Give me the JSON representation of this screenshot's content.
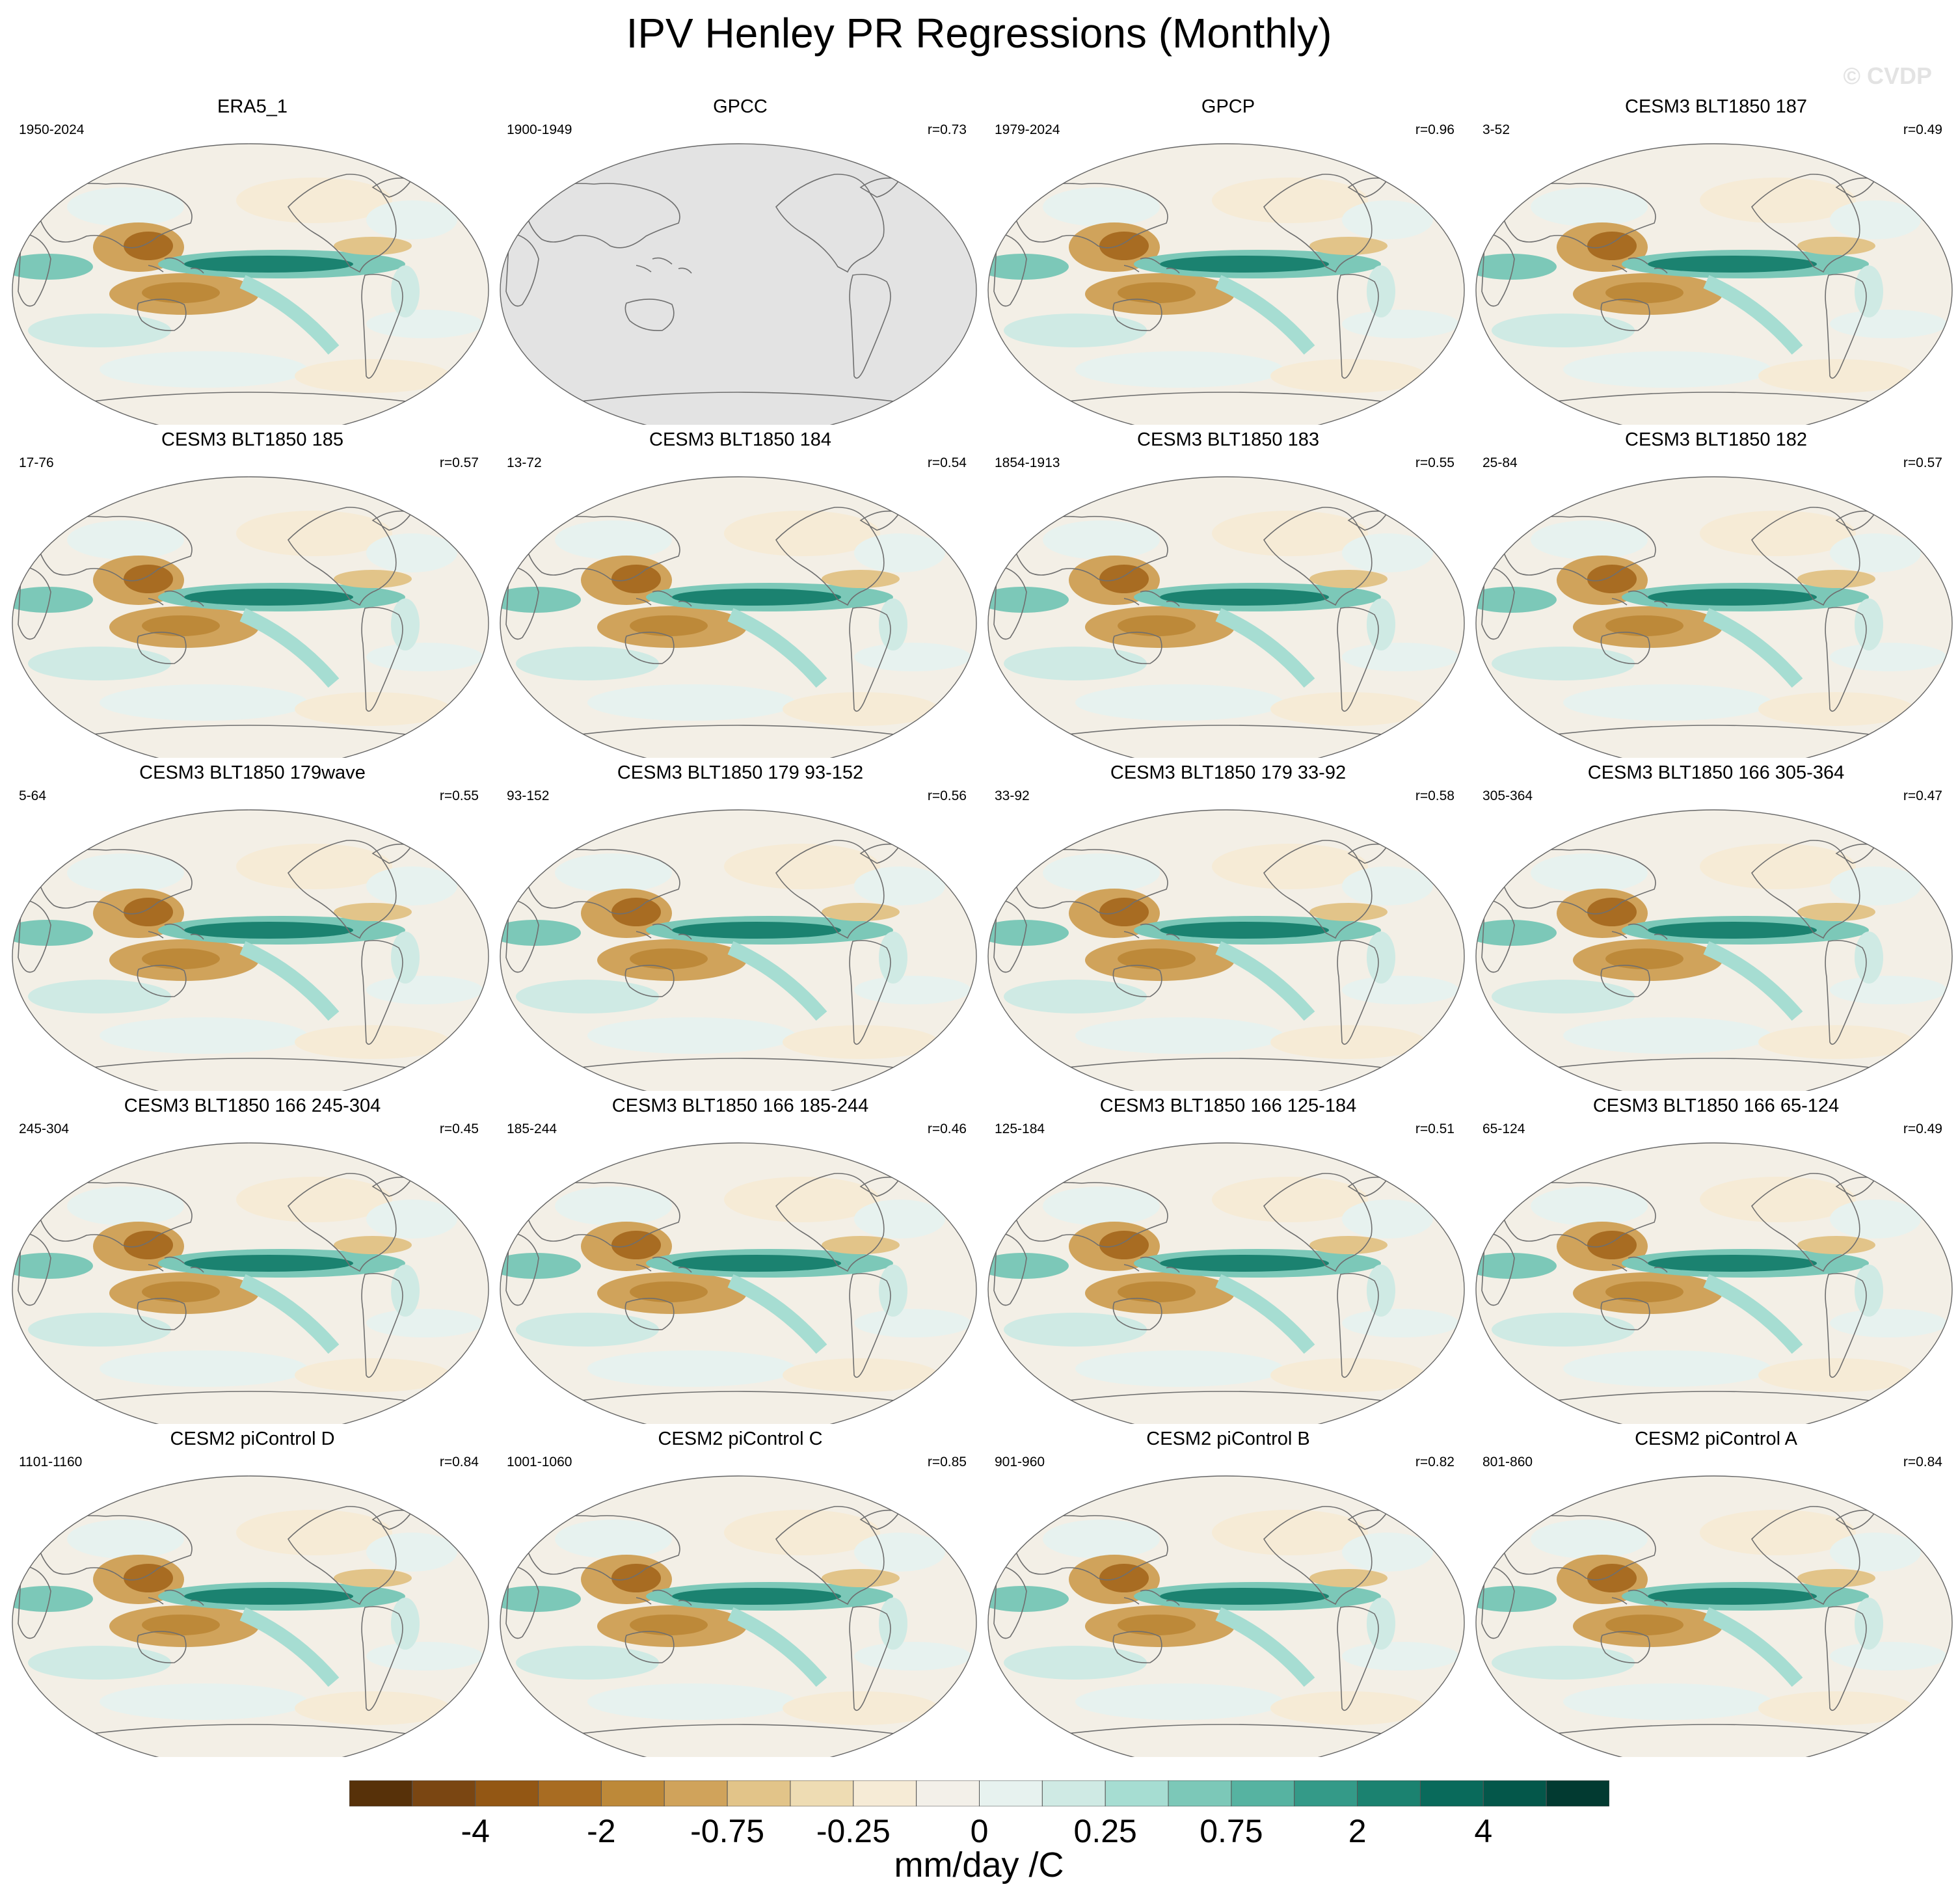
{
  "title": "IPV Henley PR Regressions (Monthly)",
  "watermark": "© CVDP",
  "colorbar": {
    "colors": [
      "#573109",
      "#7a4612",
      "#935714",
      "#a86c22",
      "#bd8939",
      "#d0a35b",
      "#e2c489",
      "#eedcb3",
      "#f6ebd6",
      "#f3f0e9",
      "#e7f2ef",
      "#cfeae4",
      "#a6ddd2",
      "#7cc8b8",
      "#56b3a1",
      "#349a88",
      "#1b8270",
      "#096a5b",
      "#04574a",
      "#023a31"
    ],
    "labels": [
      "-4",
      "-2",
      "-0.75",
      "-0.25",
      "0",
      "0.25",
      "0.75",
      "2",
      "4"
    ],
    "units": "mm/day /C"
  },
  "panels": [
    {
      "title": "ERA5_1",
      "years": "1950-2024",
      "r": "",
      "masked": false
    },
    {
      "title": "GPCC",
      "years": "1900-1949",
      "r": "r=0.73",
      "masked": true
    },
    {
      "title": "GPCP",
      "years": "1979-2024",
      "r": "r=0.96",
      "masked": false
    },
    {
      "title": "CESM3 BLT1850 187",
      "years": "3-52",
      "r": "r=0.49",
      "masked": false
    },
    {
      "title": "CESM3 BLT1850 185",
      "years": "17-76",
      "r": "r=0.57",
      "masked": false
    },
    {
      "title": "CESM3 BLT1850 184",
      "years": "13-72",
      "r": "r=0.54",
      "masked": false
    },
    {
      "title": "CESM3 BLT1850 183",
      "years": "1854-1913",
      "r": "r=0.55",
      "masked": false
    },
    {
      "title": "CESM3 BLT1850 182",
      "years": "25-84",
      "r": "r=0.57",
      "masked": false
    },
    {
      "title": "CESM3 BLT1850 179wave",
      "years": "5-64",
      "r": "r=0.55",
      "masked": false
    },
    {
      "title": "CESM3 BLT1850 179 93-152",
      "years": "93-152",
      "r": "r=0.56",
      "masked": false
    },
    {
      "title": "CESM3 BLT1850 179 33-92",
      "years": "33-92",
      "r": "r=0.58",
      "masked": false
    },
    {
      "title": "CESM3 BLT1850 166 305-364",
      "years": "305-364",
      "r": "r=0.47",
      "masked": false
    },
    {
      "title": "CESM3 BLT1850 166 245-304",
      "years": "245-304",
      "r": "r=0.45",
      "masked": false
    },
    {
      "title": "CESM3 BLT1850 166 185-244",
      "years": "185-244",
      "r": "r=0.46",
      "masked": false
    },
    {
      "title": "CESM3 BLT1850 166 125-184",
      "years": "125-184",
      "r": "r=0.51",
      "masked": false
    },
    {
      "title": "CESM3 BLT1850 166 65-124",
      "years": "65-124",
      "r": "r=0.49",
      "masked": false
    },
    {
      "title": "CESM2 piControl D",
      "years": "1101-1160",
      "r": "r=0.84",
      "masked": false
    },
    {
      "title": "CESM2 piControl C",
      "years": "1001-1060",
      "r": "r=0.85",
      "masked": false
    },
    {
      "title": "CESM2 piControl B",
      "years": "901-960",
      "r": "r=0.82",
      "masked": false
    },
    {
      "title": "CESM2 piControl A",
      "years": "801-860",
      "r": "r=0.84",
      "masked": false
    }
  ]
}
